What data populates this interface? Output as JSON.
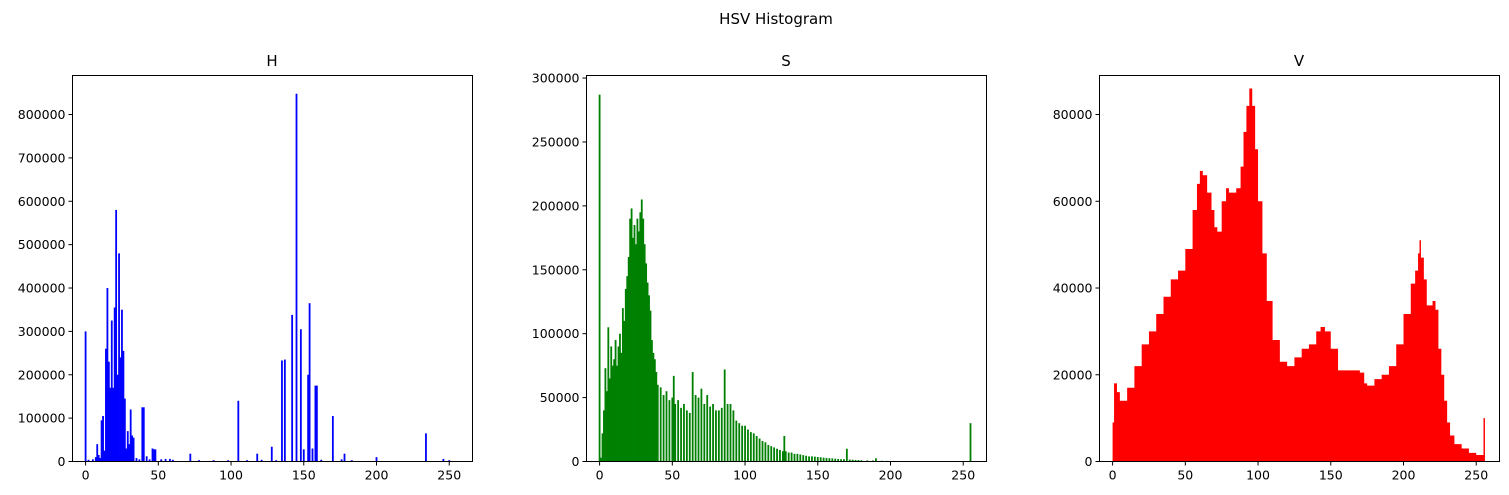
{
  "figure": {
    "title": "HSV Histogram"
  },
  "chart_data": [
    {
      "type": "bar",
      "title": "H",
      "color": "#0000ff",
      "xlabel": "",
      "ylabel": "",
      "xlim": [
        -9,
        266
      ],
      "ylim": [
        0,
        890000
      ],
      "xticks": [
        0,
        50,
        100,
        150,
        200,
        250
      ],
      "yticks": [
        0,
        100000,
        200000,
        300000,
        400000,
        500000,
        600000,
        700000,
        800000
      ],
      "points": [
        [
          0,
          300000
        ],
        [
          2,
          4000
        ],
        [
          5,
          5000
        ],
        [
          7,
          10000
        ],
        [
          8,
          40000
        ],
        [
          9,
          15000
        ],
        [
          10,
          8000
        ],
        [
          11,
          95000
        ],
        [
          12,
          105000
        ],
        [
          13,
          25000
        ],
        [
          14,
          260000
        ],
        [
          15,
          400000
        ],
        [
          16,
          230000
        ],
        [
          17,
          170000
        ],
        [
          18,
          325000
        ],
        [
          19,
          170000
        ],
        [
          20,
          355000
        ],
        [
          21,
          580000
        ],
        [
          22,
          200000
        ],
        [
          23,
          480000
        ],
        [
          24,
          240000
        ],
        [
          25,
          350000
        ],
        [
          26,
          255000
        ],
        [
          27,
          145000
        ],
        [
          28,
          30000
        ],
        [
          29,
          70000
        ],
        [
          30,
          40000
        ],
        [
          31,
          120000
        ],
        [
          32,
          60000
        ],
        [
          33,
          55000
        ],
        [
          35,
          8000
        ],
        [
          37,
          5000
        ],
        [
          39,
          125000
        ],
        [
          40,
          125000
        ],
        [
          42,
          12000
        ],
        [
          44,
          5000
        ],
        [
          46,
          30000
        ],
        [
          47,
          28000
        ],
        [
          48,
          28000
        ],
        [
          52,
          5000
        ],
        [
          55,
          6000
        ],
        [
          58,
          6000
        ],
        [
          60,
          4000
        ],
        [
          72,
          18000
        ],
        [
          78,
          3000
        ],
        [
          88,
          3000
        ],
        [
          98,
          3000
        ],
        [
          105,
          140000
        ],
        [
          111,
          3000
        ],
        [
          118,
          18000
        ],
        [
          121,
          4000
        ],
        [
          128,
          34000
        ],
        [
          131,
          3000
        ],
        [
          135,
          233000
        ],
        [
          137,
          235000
        ],
        [
          142,
          338000
        ],
        [
          145,
          848000
        ],
        [
          148,
          305000
        ],
        [
          150,
          28000
        ],
        [
          153,
          200000
        ],
        [
          154,
          365000
        ],
        [
          156,
          30000
        ],
        [
          158,
          175000
        ],
        [
          159,
          175000
        ],
        [
          162,
          4000
        ],
        [
          170,
          105000
        ],
        [
          176,
          5000
        ],
        [
          178,
          18000
        ],
        [
          183,
          3000
        ],
        [
          200,
          10000
        ],
        [
          234,
          65000
        ],
        [
          246,
          6000
        ],
        [
          250,
          3000
        ]
      ]
    },
    {
      "type": "bar",
      "title": "S",
      "color": "#008000",
      "xlabel": "",
      "ylabel": "",
      "xlim": [
        -9,
        266
      ],
      "ylim": [
        0,
        302000
      ],
      "xticks": [
        0,
        50,
        100,
        150,
        200,
        250
      ],
      "yticks": [
        0,
        50000,
        100000,
        150000,
        200000,
        250000,
        300000
      ],
      "points": [
        [
          0,
          287000
        ],
        [
          1,
          3000
        ],
        [
          2,
          22000
        ],
        [
          3,
          40000
        ],
        [
          4,
          73000
        ],
        [
          5,
          55000
        ],
        [
          6,
          105000
        ],
        [
          7,
          65000
        ],
        [
          8,
          90000
        ],
        [
          9,
          75000
        ],
        [
          10,
          80000
        ],
        [
          11,
          95000
        ],
        [
          12,
          75000
        ],
        [
          13,
          90000
        ],
        [
          14,
          100000
        ],
        [
          15,
          85000
        ],
        [
          16,
          120000
        ],
        [
          17,
          110000
        ],
        [
          18,
          135000
        ],
        [
          19,
          145000
        ],
        [
          20,
          160000
        ],
        [
          21,
          190000
        ],
        [
          22,
          198000
        ],
        [
          23,
          175000
        ],
        [
          24,
          185000
        ],
        [
          25,
          170000
        ],
        [
          26,
          190000
        ],
        [
          27,
          180000
        ],
        [
          28,
          195000
        ],
        [
          29,
          205000
        ],
        [
          30,
          190000
        ],
        [
          31,
          170000
        ],
        [
          32,
          155000
        ],
        [
          33,
          140000
        ],
        [
          34,
          130000
        ],
        [
          35,
          118000
        ],
        [
          36,
          95000
        ],
        [
          37,
          85000
        ],
        [
          38,
          80000
        ],
        [
          39,
          70000
        ],
        [
          40,
          60000
        ],
        [
          42,
          58000
        ],
        [
          44,
          52000
        ],
        [
          46,
          55000
        ],
        [
          48,
          48000
        ],
        [
          50,
          50000
        ],
        [
          51,
          67000
        ],
        [
          52,
          45000
        ],
        [
          54,
          48000
        ],
        [
          56,
          42000
        ],
        [
          58,
          45000
        ],
        [
          60,
          40000
        ],
        [
          62,
          38000
        ],
        [
          64,
          70000
        ],
        [
          66,
          52000
        ],
        [
          68,
          50000
        ],
        [
          70,
          57000
        ],
        [
          72,
          45000
        ],
        [
          74,
          52000
        ],
        [
          76,
          43000
        ],
        [
          78,
          45000
        ],
        [
          80,
          40000
        ],
        [
          82,
          40000
        ],
        [
          84,
          42000
        ],
        [
          86,
          72000
        ],
        [
          88,
          45000
        ],
        [
          90,
          45000
        ],
        [
          92,
          40000
        ],
        [
          94,
          32000
        ],
        [
          96,
          30000
        ],
        [
          98,
          28000
        ],
        [
          100,
          28000
        ],
        [
          102,
          25000
        ],
        [
          104,
          23000
        ],
        [
          106,
          22000
        ],
        [
          108,
          20000
        ],
        [
          110,
          18000
        ],
        [
          112,
          16000
        ],
        [
          114,
          15000
        ],
        [
          116,
          13000
        ],
        [
          118,
          12000
        ],
        [
          120,
          11000
        ],
        [
          122,
          10000
        ],
        [
          124,
          9000
        ],
        [
          126,
          8000
        ],
        [
          127,
          20000
        ],
        [
          128,
          8000
        ],
        [
          130,
          7000
        ],
        [
          132,
          7000
        ],
        [
          134,
          6000
        ],
        [
          136,
          6000
        ],
        [
          138,
          5500
        ],
        [
          140,
          5000
        ],
        [
          142,
          4500
        ],
        [
          144,
          4000
        ],
        [
          146,
          4000
        ],
        [
          148,
          3800
        ],
        [
          150,
          3500
        ],
        [
          152,
          3300
        ],
        [
          154,
          3000
        ],
        [
          156,
          2800
        ],
        [
          158,
          2600
        ],
        [
          160,
          2400
        ],
        [
          162,
          2200
        ],
        [
          164,
          2000
        ],
        [
          166,
          1800
        ],
        [
          168,
          1800
        ],
        [
          170,
          10000
        ],
        [
          172,
          1500
        ],
        [
          174,
          1400
        ],
        [
          176,
          1200
        ],
        [
          178,
          1100
        ],
        [
          180,
          1000
        ],
        [
          184,
          900
        ],
        [
          188,
          800
        ],
        [
          190,
          2500
        ],
        [
          194,
          600
        ],
        [
          198,
          500
        ],
        [
          202,
          400
        ],
        [
          206,
          400
        ],
        [
          210,
          300
        ],
        [
          214,
          300
        ],
        [
          218,
          250
        ],
        [
          222,
          200
        ],
        [
          226,
          150
        ],
        [
          230,
          150
        ],
        [
          234,
          100
        ],
        [
          238,
          100
        ],
        [
          242,
          100
        ],
        [
          246,
          80
        ],
        [
          250,
          80
        ],
        [
          254,
          80
        ],
        [
          255,
          30000
        ]
      ]
    },
    {
      "type": "area",
      "title": "V",
      "color": "#ff0000",
      "xlabel": "",
      "ylabel": "",
      "xlim": [
        -9,
        266
      ],
      "ylim": [
        0,
        89000
      ],
      "xticks": [
        0,
        50,
        100,
        150,
        200,
        250
      ],
      "yticks": [
        0,
        20000,
        40000,
        60000,
        80000
      ],
      "points": [
        [
          0,
          9000
        ],
        [
          1,
          18000
        ],
        [
          3,
          16000
        ],
        [
          5,
          14000
        ],
        [
          8,
          14000
        ],
        [
          10,
          17000
        ],
        [
          15,
          22000
        ],
        [
          20,
          27000
        ],
        [
          25,
          30000
        ],
        [
          30,
          34000
        ],
        [
          35,
          38000
        ],
        [
          40,
          42000
        ],
        [
          45,
          44000
        ],
        [
          50,
          49000
        ],
        [
          55,
          58000
        ],
        [
          58,
          64000
        ],
        [
          60,
          67000
        ],
        [
          62,
          66000
        ],
        [
          65,
          62000
        ],
        [
          68,
          58000
        ],
        [
          70,
          54000
        ],
        [
          72,
          53000
        ],
        [
          75,
          60000
        ],
        [
          78,
          63000
        ],
        [
          80,
          62000
        ],
        [
          85,
          63000
        ],
        [
          88,
          68000
        ],
        [
          90,
          76000
        ],
        [
          92,
          82000
        ],
        [
          94,
          86000
        ],
        [
          96,
          82000
        ],
        [
          98,
          72000
        ],
        [
          100,
          60000
        ],
        [
          103,
          48000
        ],
        [
          106,
          37000
        ],
        [
          110,
          28000
        ],
        [
          115,
          23000
        ],
        [
          120,
          22000
        ],
        [
          125,
          24000
        ],
        [
          130,
          26000
        ],
        [
          135,
          27000
        ],
        [
          140,
          30000
        ],
        [
          143,
          31000
        ],
        [
          146,
          30000
        ],
        [
          150,
          26000
        ],
        [
          155,
          21000
        ],
        [
          160,
          21000
        ],
        [
          165,
          21000
        ],
        [
          170,
          20500
        ],
        [
          173,
          18000
        ],
        [
          175,
          17500
        ],
        [
          180,
          19000
        ],
        [
          185,
          20000
        ],
        [
          190,
          22000
        ],
        [
          195,
          27000
        ],
        [
          200,
          34000
        ],
        [
          205,
          41000
        ],
        [
          208,
          44000
        ],
        [
          210,
          48000
        ],
        [
          211,
          51000
        ],
        [
          212,
          47000
        ],
        [
          214,
          42000
        ],
        [
          216,
          36000
        ],
        [
          218,
          36000
        ],
        [
          220,
          37000
        ],
        [
          222,
          35000
        ],
        [
          224,
          26000
        ],
        [
          226,
          20000
        ],
        [
          228,
          14000
        ],
        [
          230,
          9000
        ],
        [
          232,
          6000
        ],
        [
          235,
          4000
        ],
        [
          240,
          3000
        ],
        [
          245,
          2000
        ],
        [
          250,
          1500
        ],
        [
          254,
          1500
        ],
        [
          255,
          10000
        ]
      ]
    }
  ]
}
